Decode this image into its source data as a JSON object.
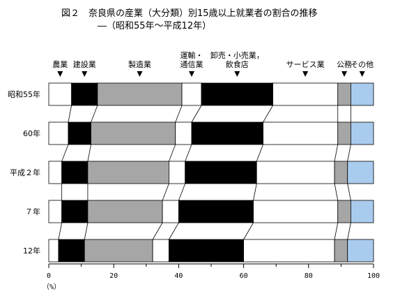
{
  "title_line1": "図２　奈良県の産業（大分類）別15歳以上就業者の割合の推移",
  "title_line2": "―（昭和55年～平成12年）",
  "chart_data": {
    "type": "bar",
    "orientation": "horizontal-stacked-100",
    "categories": [
      "昭和55年",
      "60年",
      "平成２年",
      "７年",
      "12年"
    ],
    "series": [
      {
        "name": "農業",
        "values": [
          7,
          6,
          4,
          4,
          3
        ],
        "color": "#ffffff"
      },
      {
        "name": "建設業",
        "values": [
          8,
          7,
          8,
          8,
          8
        ],
        "color": "#000000"
      },
      {
        "name": "製造業",
        "values": [
          26,
          26,
          25,
          23,
          21
        ],
        "color": "#a6a6a6"
      },
      {
        "name": "運輸・\n通信業",
        "values": [
          6,
          5,
          5,
          5,
          5
        ],
        "color": "#ffffff"
      },
      {
        "name": "卸売・小売業，\n飲食店",
        "values": [
          22,
          22,
          22,
          23,
          23
        ],
        "color": "#000000"
      },
      {
        "name": "サービス業",
        "values": [
          20,
          23,
          24,
          26,
          28
        ],
        "color": "#ffffff"
      },
      {
        "name": "公務",
        "values": [
          4,
          4,
          4,
          4,
          4
        ],
        "color": "#a6a6a6"
      },
      {
        "name": "その他",
        "values": [
          7,
          7,
          8,
          7,
          8
        ],
        "color": "#a9cbed"
      }
    ],
    "xlim": [
      0,
      100
    ],
    "xticks": [
      0,
      20,
      40,
      60,
      80,
      100
    ],
    "xlabel": "（%）"
  }
}
